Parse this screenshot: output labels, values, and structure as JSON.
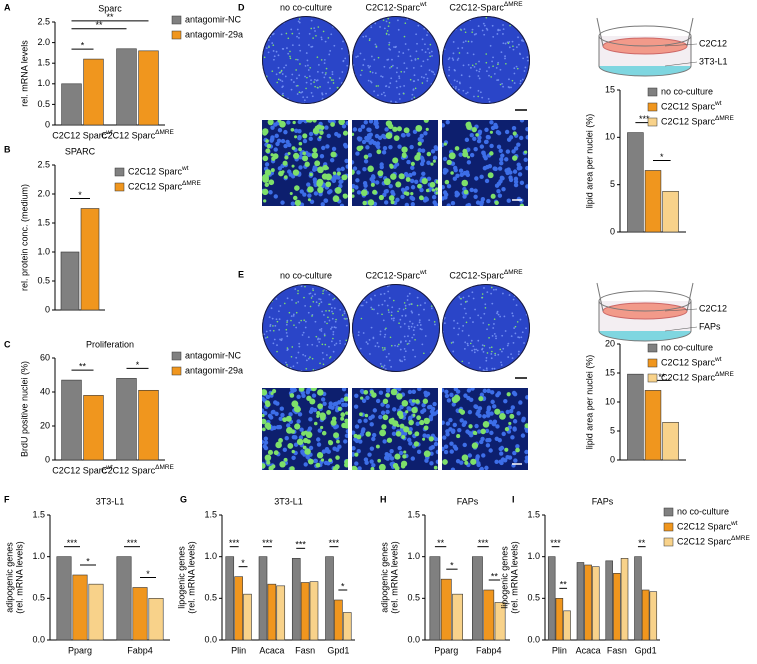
{
  "chart_data": [
    {
      "panel": "A",
      "type": "bar",
      "title": "Sparc",
      "ylabel": [
        "rel. mRNA levels"
      ],
      "categories": [
        "C2C12 Sparc",
        "C2C12 Sparc"
      ],
      "category_sup": [
        "wt",
        "ΔMRE"
      ],
      "series": [
        {
          "name": "antagomir-NC",
          "color": "#808080",
          "values": [
            1.0,
            1.85
          ]
        },
        {
          "name": "antagomir-29a",
          "color": "#f0961e",
          "values": [
            1.6,
            1.8
          ]
        }
      ],
      "ylim": [
        0,
        2.5
      ],
      "yticks": [
        0,
        0.5,
        {
          "value": 1,
          "label": "1.0"
        },
        1.5,
        {
          "value": 2,
          "label": "2.0"
        },
        2.5
      ],
      "annotations": [
        "*",
        "**",
        "**"
      ]
    },
    {
      "panel": "B",
      "type": "bar",
      "title": "SPARC",
      "ylabel": [
        "rel. protein conc. (medium)"
      ],
      "series": [
        {
          "name": "C2C12 Sparc",
          "name_sup": "wt",
          "color": "#808080",
          "values": [
            1.0
          ]
        },
        {
          "name": "C2C12 Sparc",
          "name_sup": "ΔMRE",
          "color": "#f0961e",
          "values": [
            1.75
          ]
        }
      ],
      "ylim": [
        0,
        2.5
      ],
      "yticks": [
        0,
        0.5,
        {
          "value": 1,
          "label": "1.0"
        },
        1.5,
        {
          "value": 2,
          "label": "2.0"
        },
        2.5
      ],
      "annotations": [
        "*"
      ]
    },
    {
      "panel": "C",
      "type": "bar",
      "title": "Proliferation",
      "ylabel": [
        "BrdU positive nuclei (%)"
      ],
      "categories": [
        "C2C12 Sparc",
        "C2C12 Sparc"
      ],
      "category_sup": [
        "wt",
        "ΔMRE"
      ],
      "series": [
        {
          "name": "antagomir-NC",
          "color": "#808080",
          "values": [
            47,
            48
          ]
        },
        {
          "name": "antagomir-29a",
          "color": "#f0961e",
          "values": [
            38,
            41
          ]
        }
      ],
      "ylim": [
        0,
        60
      ],
      "yticks": [
        0,
        20,
        40,
        60
      ],
      "annotations": [
        "**",
        "*"
      ]
    },
    {
      "panel": "D",
      "type": "bar",
      "ylabel": [
        "lipid area per nuclei (%)"
      ],
      "image_labels": [
        {
          "text": "no co-culture"
        },
        {
          "text": "C2C12-Sparc",
          "sup": "wt"
        },
        {
          "text": "C2C12-Sparc",
          "sup": "ΔMRE"
        }
      ],
      "diagram_labels": [
        "C2C12",
        "3T3-L1"
      ],
      "series": [
        {
          "name": "no co-culture",
          "color": "#808080",
          "values": [
            10.5
          ]
        },
        {
          "name": "C2C12 Sparc",
          "name_sup": "wt",
          "color": "#f0961e",
          "values": [
            6.5
          ]
        },
        {
          "name": "C2C12 Sparc",
          "name_sup": "ΔMRE",
          "color": "#f8d28a",
          "values": [
            4.3
          ]
        }
      ],
      "ylim": [
        0,
        15
      ],
      "yticks": [
        0,
        5,
        10,
        15
      ],
      "annotations": [
        "***",
        "*"
      ]
    },
    {
      "panel": "E",
      "type": "bar",
      "ylabel": [
        "lipid area per nuclei (%)"
      ],
      "image_labels": [
        {
          "text": "no co-culture"
        },
        {
          "text": "C2C12-Sparc",
          "sup": "wt"
        },
        {
          "text": "C2C12-Sparc",
          "sup": "ΔMRE"
        }
      ],
      "diagram_labels": [
        "C2C12",
        "FAPs"
      ],
      "series": [
        {
          "name": "no co-culture",
          "color": "#808080",
          "values": [
            14.8
          ]
        },
        {
          "name": "C2C12 Sparc",
          "name_sup": "wt",
          "color": "#f0961e",
          "values": [
            12
          ]
        },
        {
          "name": "C2C12 Sparc",
          "name_sup": "ΔMRE",
          "color": "#f8d28a",
          "values": [
            6.5
          ]
        }
      ],
      "ylim": [
        0,
        20
      ],
      "yticks": [
        0,
        5,
        10,
        15,
        20
      ],
      "annotations": [
        "**"
      ]
    },
    {
      "panel": "F",
      "type": "bar",
      "title": "3T3-L1",
      "ylabel": [
        "adipogenic genes",
        "(rel. mRNA levels)"
      ],
      "categories": [
        "Pparg",
        "Fabp4"
      ],
      "series": [
        {
          "color": "#808080",
          "values": [
            1.0,
            1.0
          ]
        },
        {
          "color": "#f0961e",
          "values": [
            0.78,
            0.63
          ]
        },
        {
          "color": "#f8d28a",
          "values": [
            0.67,
            0.5
          ]
        }
      ],
      "ylim": [
        0,
        1.5
      ],
      "yticks": [
        {
          "value": 0,
          "label": "0.0"
        },
        0.5,
        {
          "value": 1,
          "label": "1.0"
        },
        1.5
      ],
      "annotations": [
        "***",
        "*",
        "***",
        "*"
      ]
    },
    {
      "panel": "G",
      "type": "bar",
      "title": "3T3-L1",
      "ylabel": [
        "lipogenic genes",
        "(rel. mRNA levels)"
      ],
      "categories": [
        "Plin",
        "Acaca",
        "Fasn",
        "Gpd1"
      ],
      "series": [
        {
          "color": "#808080",
          "values": [
            1.0,
            1.0,
            0.98,
            1.0
          ]
        },
        {
          "color": "#f0961e",
          "values": [
            0.76,
            0.67,
            0.69,
            0.48
          ]
        },
        {
          "color": "#f8d28a",
          "values": [
            0.55,
            0.65,
            0.7,
            0.33
          ]
        }
      ],
      "ylim": [
        0,
        1.5
      ],
      "yticks": [
        {
          "value": 0,
          "label": "0.0"
        },
        0.5,
        {
          "value": 1,
          "label": "1.0"
        },
        1.5
      ],
      "annotations": [
        "***",
        "*",
        "***",
        "***",
        "***",
        "*"
      ]
    },
    {
      "panel": "H",
      "type": "bar",
      "title": "FAPs",
      "ylabel": [
        "adipogenic genes",
        "(rel. mRNA levels)"
      ],
      "categories": [
        "Pparg",
        "Fabp4"
      ],
      "series": [
        {
          "color": "#808080",
          "values": [
            1.0,
            1.0
          ]
        },
        {
          "color": "#f0961e",
          "values": [
            0.73,
            0.6
          ]
        },
        {
          "color": "#f8d28a",
          "values": [
            0.55,
            0.45
          ]
        }
      ],
      "ylim": [
        0,
        1.5
      ],
      "yticks": [
        {
          "value": 0,
          "label": "0.0"
        },
        0.5,
        {
          "value": 1,
          "label": "1.0"
        },
        1.5
      ],
      "annotations": [
        "**",
        "*",
        "***",
        "**"
      ]
    },
    {
      "panel": "I",
      "type": "bar",
      "title": "FAPs",
      "ylabel": [
        "lipogenic genes",
        "(rel. mRNA levels)"
      ],
      "categories": [
        "Plin",
        "Acaca",
        "Fasn",
        "Gpd1"
      ],
      "series": [
        {
          "name": "no co-culture",
          "color": "#808080",
          "values": [
            1.0,
            0.93,
            0.95,
            1.0
          ]
        },
        {
          "name": "C2C12 Sparc",
          "name_sup": "wt",
          "color": "#f0961e",
          "values": [
            0.5,
            0.9,
            0.8,
            0.6
          ]
        },
        {
          "name": "C2C12 Sparc",
          "name_sup": "ΔMRE",
          "color": "#f8d28a",
          "values": [
            0.35,
            0.88,
            0.98,
            0.58
          ]
        }
      ],
      "ylim": [
        0,
        1.5
      ],
      "yticks": [
        {
          "value": 0,
          "label": "0.0"
        },
        0.5,
        {
          "value": 1,
          "label": "1.0"
        },
        1.5
      ],
      "annotations": [
        "***",
        "**",
        "**"
      ]
    }
  ]
}
